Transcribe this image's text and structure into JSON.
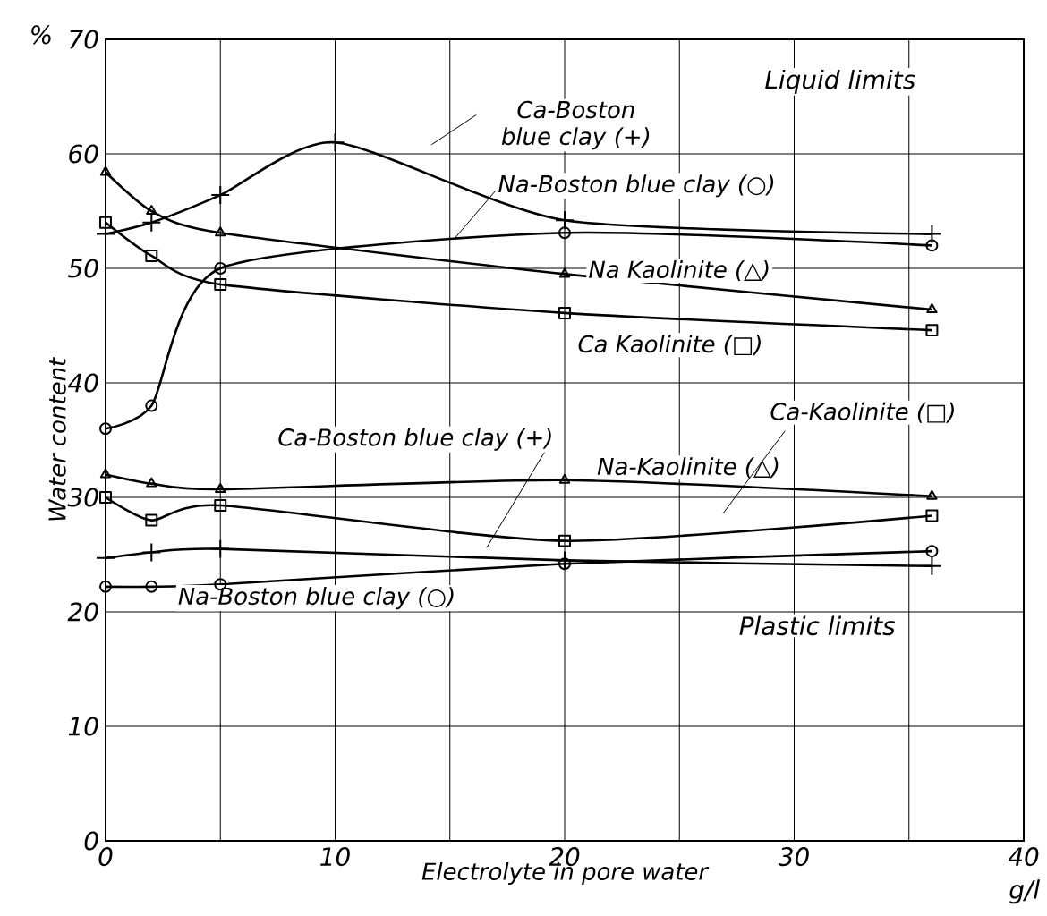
{
  "chart_data": {
    "type": "line",
    "xlabel": "Electrolyte in pore water",
    "ylabel": "Water content",
    "annotations": [
      "Liquid limits",
      "Plastic limits",
      "%",
      "g/l"
    ],
    "xlim": [
      0,
      40
    ],
    "ylim": [
      0,
      70
    ],
    "xticks": [
      0,
      {
        "value": 5,
        "label": null
      },
      10,
      {
        "value": 15,
        "label": null
      },
      20,
      {
        "value": 25,
        "label": null
      },
      30,
      {
        "value": 35,
        "label": null
      },
      40
    ],
    "yticks": [
      0,
      10,
      20,
      30,
      40,
      50,
      60,
      70
    ],
    "grid": true,
    "line_style": "solid",
    "series": [
      {
        "name": "Ca-Boston blue clay (+)",
        "color": "#000000",
        "marker": "cross",
        "x": [
          0,
          2,
          5,
          10,
          20,
          36
        ],
        "values": [
          53,
          54,
          56.4,
          61,
          54.2,
          53
        ]
      },
      {
        "name": "Na-Boston blue clay (○)",
        "color": "#000000",
        "marker": "circle",
        "x": [
          0,
          2,
          5,
          20,
          36
        ],
        "values": [
          36,
          38,
          50,
          53.1,
          52
        ]
      },
      {
        "name": "Na Kaolinite (△)",
        "color": "#000000",
        "marker": "triangle",
        "x": [
          0,
          2,
          5,
          20,
          36
        ],
        "values": [
          58.4,
          55,
          53.1,
          49.5,
          46.4
        ]
      },
      {
        "name": "Ca Kaolinite (□)",
        "color": "#000000",
        "marker": "square",
        "x": [
          0,
          2,
          5,
          20,
          36
        ],
        "values": [
          54,
          51.1,
          48.6,
          46.1,
          44.6
        ]
      },
      {
        "name": "Na-Kaolinite (△)",
        "color": "#000000",
        "marker": "triangle",
        "x": [
          0,
          2,
          5,
          20,
          36
        ],
        "values": [
          32,
          31.2,
          30.7,
          31.5,
          30.1
        ]
      },
      {
        "name": "Ca-Kaolinite (□)",
        "color": "#000000",
        "marker": "square",
        "x": [
          0,
          2,
          5,
          20,
          36
        ],
        "values": [
          30,
          28,
          29.3,
          26.2,
          28.4
        ]
      },
      {
        "name": "Ca-Boston blue clay (+)",
        "color": "#000000",
        "marker": "cross",
        "x": [
          0,
          2,
          5,
          20,
          36
        ],
        "values": [
          24.7,
          25.2,
          25.5,
          24.5,
          24
        ]
      },
      {
        "name": "Na-Boston blue clay (○)",
        "color": "#000000",
        "marker": "circle",
        "x": [
          0,
          2,
          5,
          20,
          36
        ],
        "values": [
          22.2,
          22.2,
          22.4,
          24.2,
          25.3
        ]
      }
    ]
  }
}
